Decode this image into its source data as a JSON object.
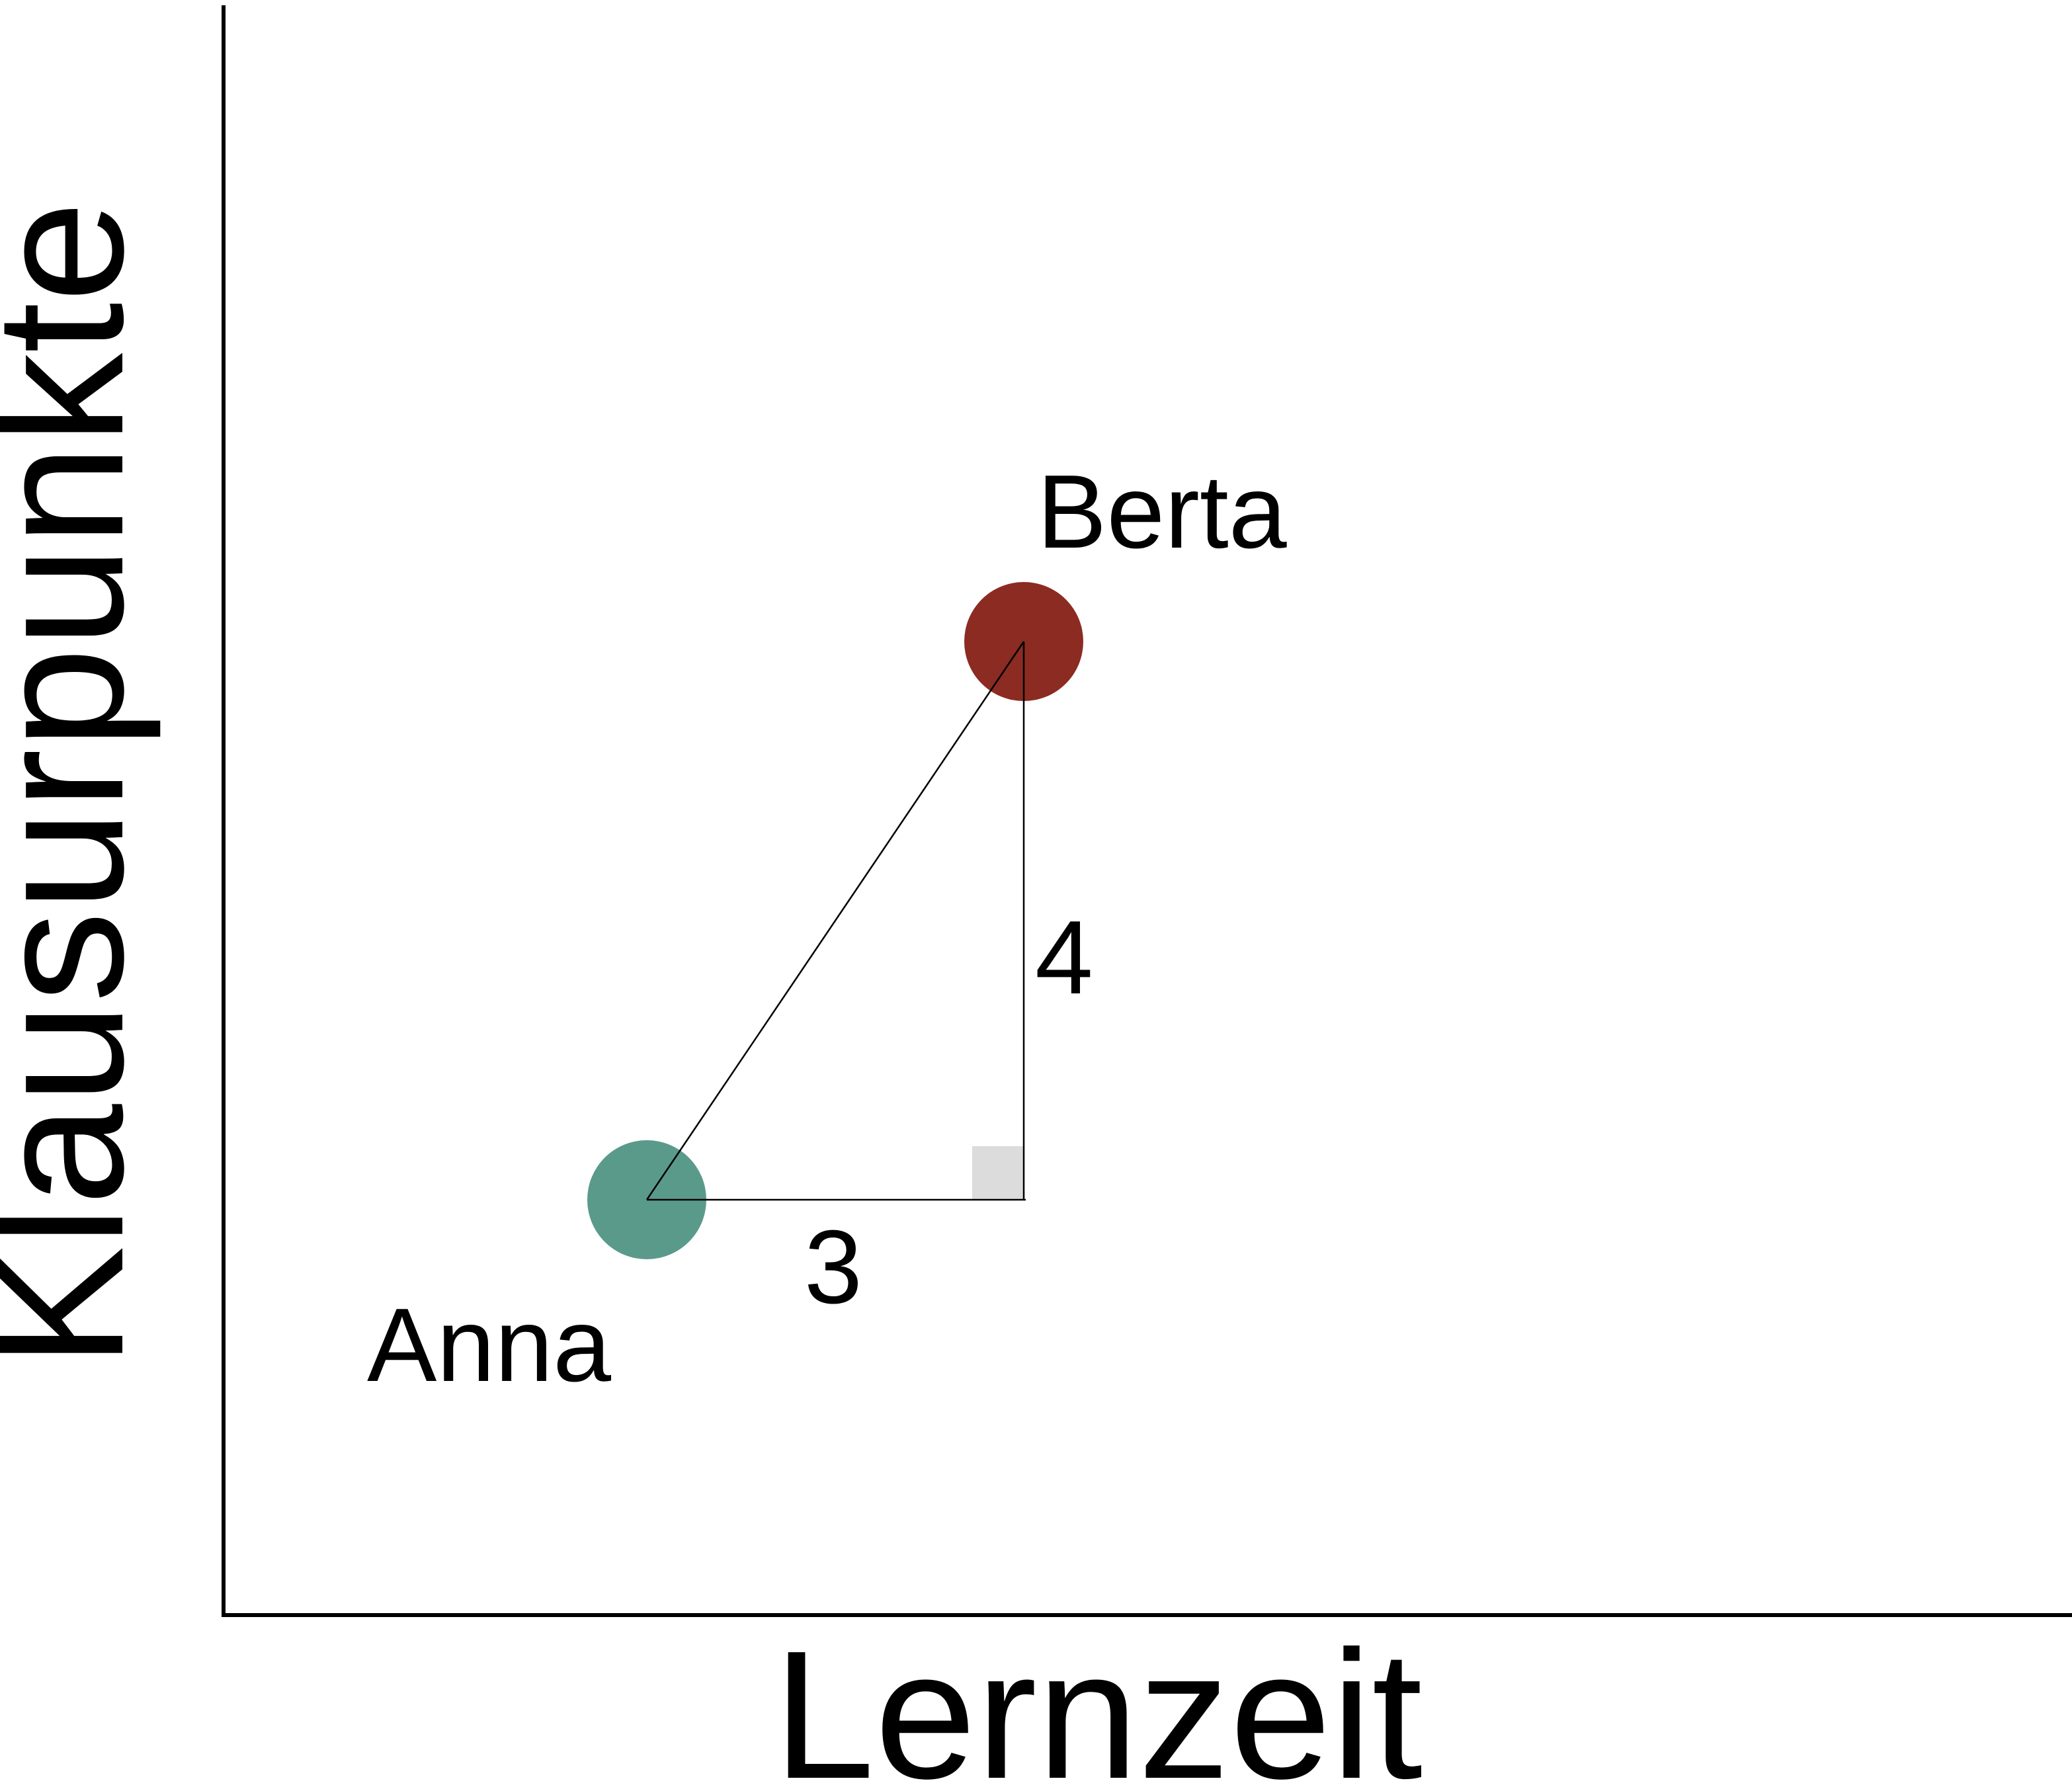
{
  "axes": {
    "x_label": "Lernzeit",
    "y_label": "Klausurpunkte"
  },
  "points": [
    {
      "id": "anna",
      "label": "Anna",
      "color": "#5a9a8b"
    },
    {
      "id": "berta",
      "label": "Berta",
      "color": "#8b2b22"
    }
  ],
  "triangle": {
    "horizontal_leg_label": "3",
    "vertical_leg_label": "4",
    "right_angle_marker_color": "#dcdcdc"
  }
}
